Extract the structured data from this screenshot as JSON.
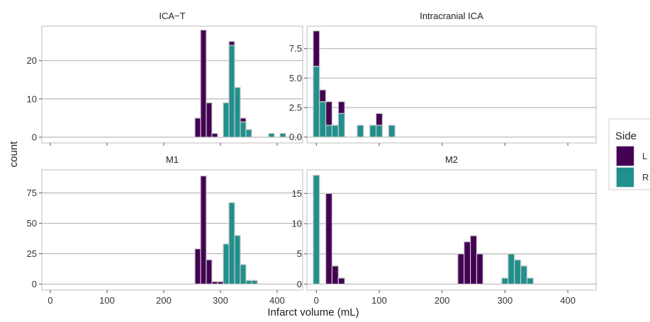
{
  "chart_data": {
    "type": "histogram-facets",
    "xlabel": "Infarct volume (mL)",
    "ylabel": "count",
    "x_ticks": [
      0,
      100,
      200,
      300,
      400
    ],
    "xlim": [
      -15,
      445
    ],
    "bin_width": 10,
    "colors": {
      "L": "#440154",
      "R": "#21908C",
      "bar_outline": "#c8c8c8",
      "grid": "#b8b8b8",
      "panel_border": "#bdbdbd"
    },
    "legend": {
      "title": "Side",
      "position": "right",
      "entries": [
        {
          "key": "L",
          "label": "L"
        },
        {
          "key": "R",
          "label": "R"
        }
      ]
    },
    "facets": [
      {
        "title": "ICA−T",
        "ylim": [
          -1.5,
          29
        ],
        "y_ticks": [
          0,
          10,
          20
        ],
        "bins": [
          {
            "x": 260,
            "L": 5,
            "R": 0
          },
          {
            "x": 270,
            "L": 28,
            "R": 0
          },
          {
            "x": 280,
            "L": 9,
            "R": 0
          },
          {
            "x": 290,
            "L": 1,
            "R": 0
          },
          {
            "x": 310,
            "L": 0,
            "R": 9
          },
          {
            "x": 320,
            "L": 1,
            "R": 24
          },
          {
            "x": 330,
            "L": 0,
            "R": 13
          },
          {
            "x": 340,
            "L": 1,
            "R": 4
          },
          {
            "x": 350,
            "L": 0,
            "R": 2
          },
          {
            "x": 390,
            "L": 0,
            "R": 1
          },
          {
            "x": 410,
            "L": 0,
            "R": 1
          }
        ]
      },
      {
        "title": "Intracranial ICA",
        "ylim": [
          -0.5,
          9.4
        ],
        "y_ticks": [
          0.0,
          2.5,
          5.0,
          7.5
        ],
        "y_tick_labels": [
          "0.0",
          "2.5",
          "5.0",
          "7.5"
        ],
        "bins": [
          {
            "x": 0,
            "L": 3,
            "R": 6
          },
          {
            "x": 10,
            "L": 1,
            "R": 3
          },
          {
            "x": 20,
            "L": 2,
            "R": 1
          },
          {
            "x": 30,
            "L": 0,
            "R": 1
          },
          {
            "x": 40,
            "L": 1,
            "R": 2
          },
          {
            "x": 70,
            "L": 0,
            "R": 1
          },
          {
            "x": 90,
            "L": 0,
            "R": 1
          },
          {
            "x": 100,
            "L": 1,
            "R": 1
          },
          {
            "x": 120,
            "L": 0,
            "R": 1
          }
        ]
      },
      {
        "title": "M1",
        "ylim": [
          -5,
          94
        ],
        "y_ticks": [
          0,
          25,
          50,
          75
        ],
        "bins": [
          {
            "x": 260,
            "L": 29,
            "R": 0
          },
          {
            "x": 270,
            "L": 89,
            "R": 0
          },
          {
            "x": 280,
            "L": 20,
            "R": 0
          },
          {
            "x": 290,
            "L": 2,
            "R": 0
          },
          {
            "x": 300,
            "L": 2,
            "R": 0
          },
          {
            "x": 310,
            "L": 0,
            "R": 33
          },
          {
            "x": 320,
            "L": 0,
            "R": 67
          },
          {
            "x": 330,
            "L": 0,
            "R": 40
          },
          {
            "x": 340,
            "L": 0,
            "R": 16
          },
          {
            "x": 350,
            "L": 0,
            "R": 3
          },
          {
            "x": 360,
            "L": 0,
            "R": 3
          }
        ]
      },
      {
        "title": "M2",
        "ylim": [
          -1,
          18.9
        ],
        "y_ticks": [
          0,
          5,
          10,
          15
        ],
        "bins": [
          {
            "x": 0,
            "L": 0,
            "R": 18
          },
          {
            "x": 20,
            "L": 15,
            "R": 0
          },
          {
            "x": 30,
            "L": 3,
            "R": 0
          },
          {
            "x": 40,
            "L": 1,
            "R": 0
          },
          {
            "x": 230,
            "L": 5,
            "R": 0
          },
          {
            "x": 240,
            "L": 7,
            "R": 0
          },
          {
            "x": 250,
            "L": 8,
            "R": 0
          },
          {
            "x": 260,
            "L": 5,
            "R": 0
          },
          {
            "x": 300,
            "L": 0,
            "R": 1
          },
          {
            "x": 310,
            "L": 0,
            "R": 5
          },
          {
            "x": 320,
            "L": 0,
            "R": 4
          },
          {
            "x": 330,
            "L": 0,
            "R": 3
          },
          {
            "x": 340,
            "L": 0,
            "R": 1
          }
        ]
      }
    ]
  }
}
